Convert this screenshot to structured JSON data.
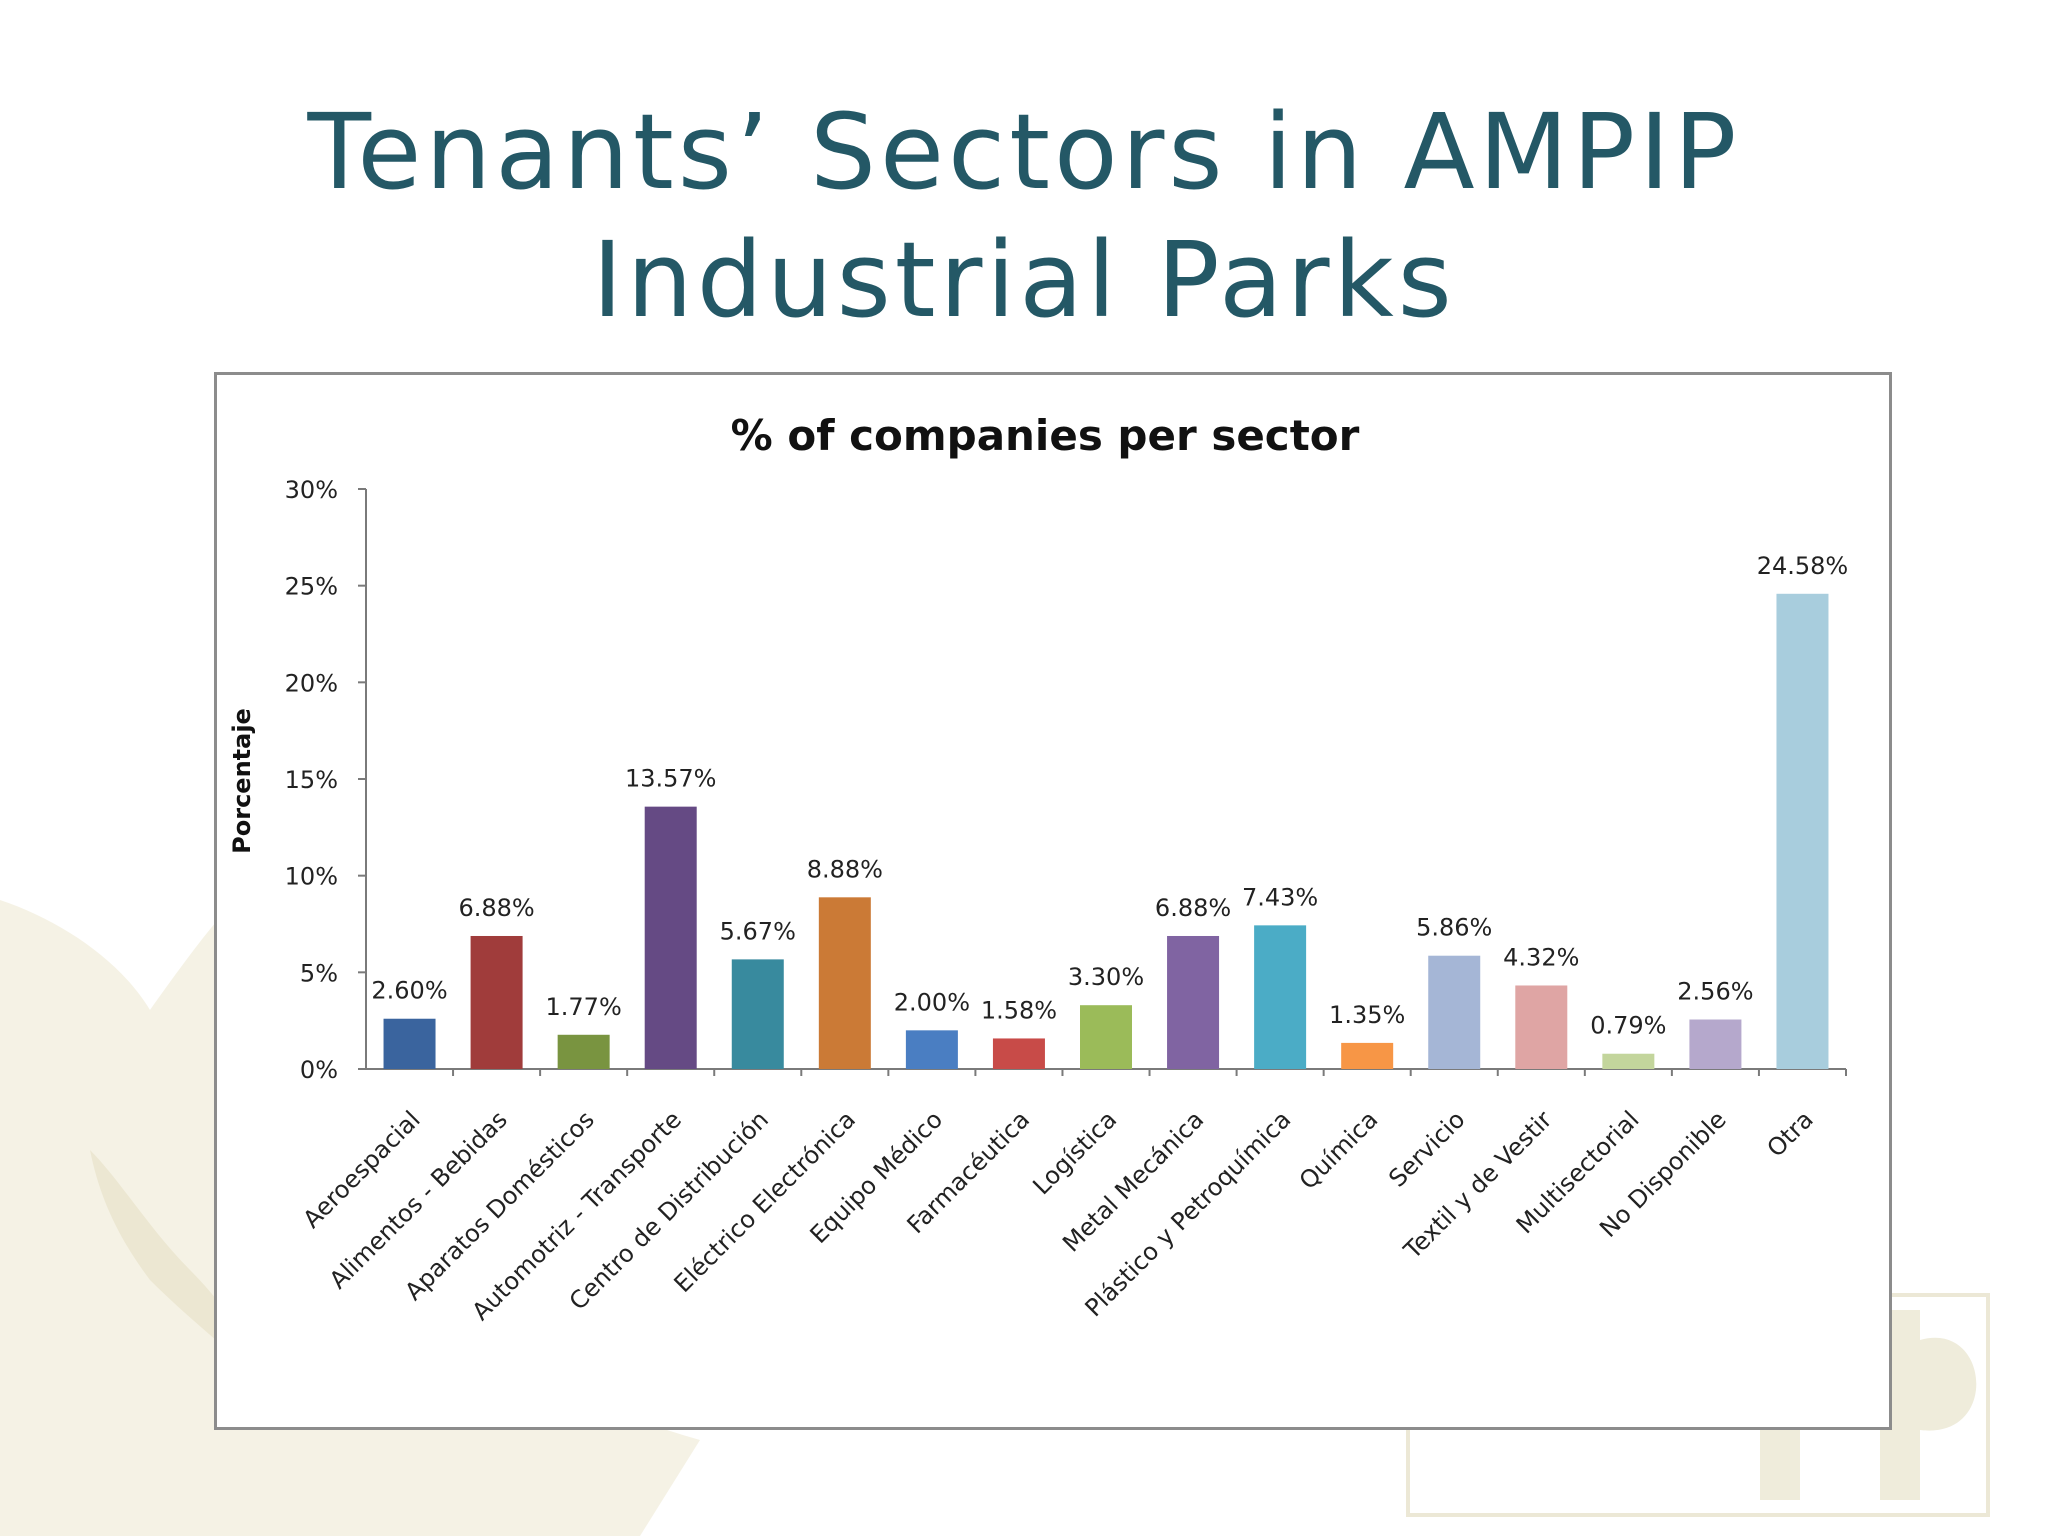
{
  "slide": {
    "title_line1": "Tenants’ Sectors in AMPIP",
    "title_line2": "Industrial Parks",
    "title_color": "#245866"
  },
  "chart_data": {
    "type": "bar",
    "title": "% of companies per sector",
    "ylabel": "Porcentaje",
    "xlabel": "",
    "ylim": [
      0,
      30
    ],
    "yticks": [
      0,
      5,
      10,
      15,
      20,
      25,
      30
    ],
    "ytick_labels": [
      "0%",
      "5%",
      "10%",
      "15%",
      "20%",
      "25%",
      "30%"
    ],
    "grid": false,
    "legend": "none",
    "categories": [
      "Aeroespacial",
      "Alimentos - Bebidas",
      "Aparatos Domésticos",
      "Automotriz - Transporte",
      "Centro de Distribución",
      "Eléctrico Electrónica",
      "Equipo Médico",
      "Farmacéutica",
      "Logística",
      "Metal Mecánica",
      "Plástico y Petroquímica",
      "Química",
      "Servicio",
      "Textil y de Vestir",
      "Multisectorial",
      "No Disponible",
      "Otra"
    ],
    "values": [
      2.6,
      6.88,
      1.77,
      13.57,
      5.67,
      8.88,
      2.0,
      1.58,
      3.3,
      6.88,
      7.43,
      1.35,
      5.86,
      4.32,
      0.79,
      2.56,
      24.58
    ],
    "value_labels": [
      "2.60%",
      "6.88%",
      "1.77%",
      "13.57%",
      "5.67%",
      "8.88%",
      "2.00%",
      "1.58%",
      "3.30%",
      "6.88%",
      "7.43%",
      "1.35%",
      "5.86%",
      "4.32%",
      "0.79%",
      "2.56%",
      "24.58%"
    ],
    "colors": [
      "#3a649e",
      "#a03c3b",
      "#799440",
      "#654a84",
      "#388a9e",
      "#cb7a36",
      "#4a7ec2",
      "#c84b48",
      "#9bbb59",
      "#8064a2",
      "#4bacc6",
      "#f79646",
      "#a5b6d6",
      "#dfa5a4",
      "#c3d59c",
      "#b5a8cc",
      "#a8cddd"
    ]
  }
}
